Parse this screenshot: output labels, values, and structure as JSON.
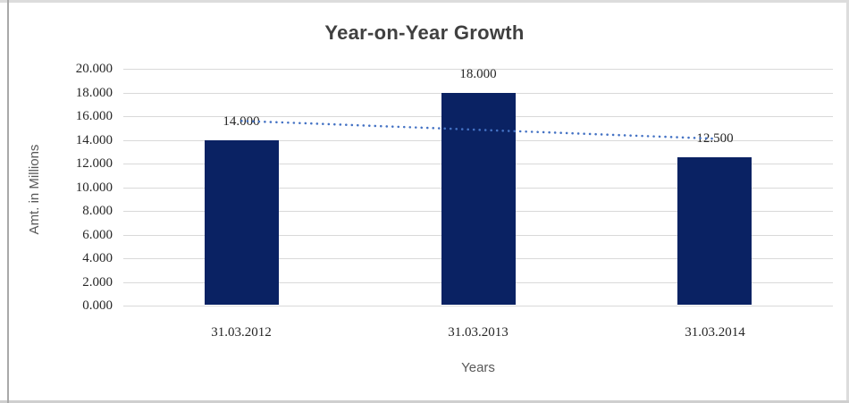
{
  "window": {
    "background": "#ffffff",
    "border_color": "#dcdcdc",
    "left_rule_color": "#a9a9a9"
  },
  "chart_data": {
    "type": "bar",
    "title": "Year-on-Year Growth",
    "xlabel": "Years",
    "ylabel": "Amt. in Millions",
    "categories": [
      "31.03.2012",
      "31.03.2013",
      "31.03.2014"
    ],
    "values": [
      14,
      18,
      12.5
    ],
    "value_labels": [
      "14.000",
      "18.000",
      "12.500"
    ],
    "ylim": [
      0,
      20
    ],
    "yticks": {
      "values": [
        0,
        2,
        4,
        6,
        8,
        10,
        12,
        14,
        16,
        18,
        20
      ],
      "labels": [
        "0.000",
        "2.000",
        "4.000",
        "6.000",
        "8.000",
        "10.000",
        "12.000",
        "14.000",
        "16.000",
        "18.000",
        "20.000"
      ]
    },
    "grid": true,
    "legend": "none",
    "bar_color": "#0a2263",
    "trendline": {
      "style": "dotted",
      "color": "#4472c4",
      "start_value": 15.6,
      "end_value": 14.1
    },
    "colors": {
      "gridline": "#d9d9d9",
      "title": "#404040",
      "axis_title": "#595959",
      "tick_label": "#262626",
      "data_label": "#262626"
    }
  }
}
